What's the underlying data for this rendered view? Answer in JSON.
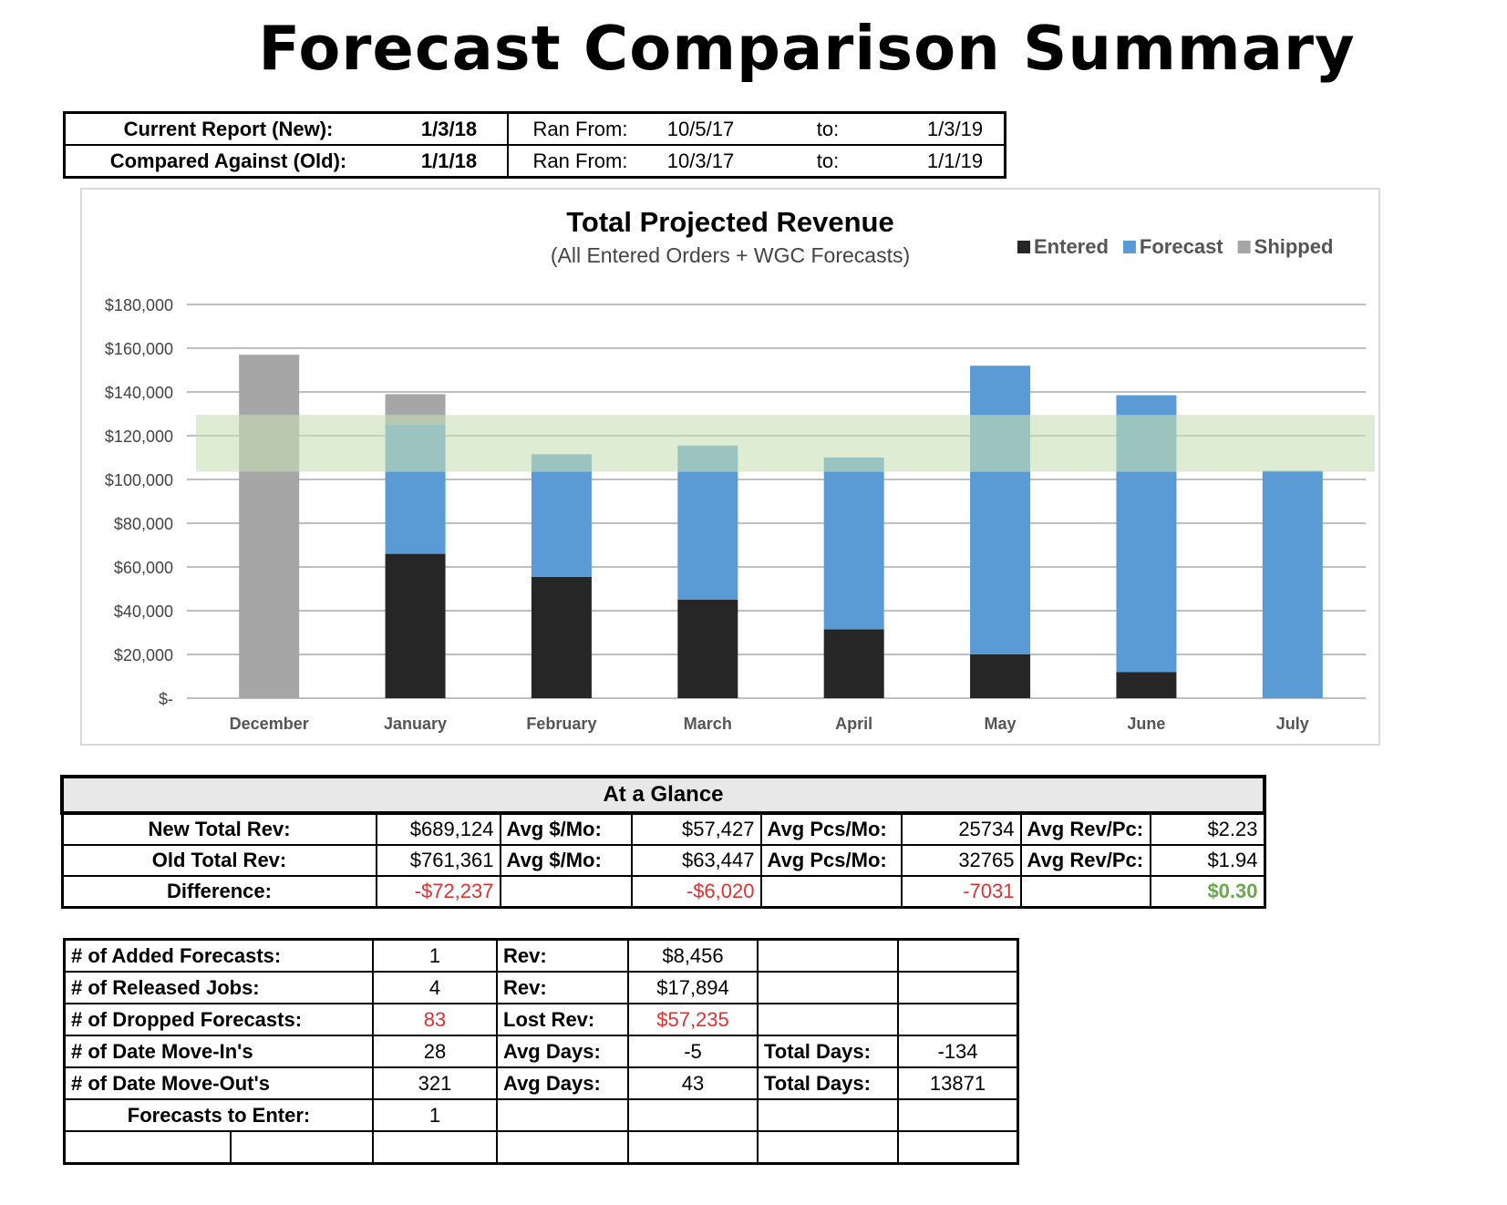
{
  "title": "Forecast Comparison Summary",
  "report": {
    "current_label": "Current Report (New):",
    "current_date": "1/3/18",
    "current_ran_label": "Ran From:",
    "current_from": "10/5/17",
    "current_to_label": "to:",
    "current_to": "1/3/19",
    "old_label": "Compared Against (Old):",
    "old_date": "1/1/18",
    "old_ran_label": "Ran From:",
    "old_from": "10/3/17",
    "old_to_label": "to:",
    "old_to": "1/1/19"
  },
  "chart_data": {
    "type": "bar",
    "stacked": true,
    "title": "Total Projected Revenue",
    "subtitle": "(All Entered Orders + WGC Forecasts)",
    "categories": [
      "December",
      "January",
      "February",
      "March",
      "April",
      "May",
      "June",
      "July"
    ],
    "series": [
      {
        "name": "Entered",
        "color": "#262626",
        "values": [
          0,
          66000,
          55500,
          45000,
          31500,
          20000,
          12000,
          0
        ]
      },
      {
        "name": "Forecast",
        "color": "#5b9bd5",
        "values": [
          0,
          59000,
          56000,
          70500,
          78500,
          132000,
          126500,
          104000
        ]
      },
      {
        "name": "Shipped",
        "color": "#a6a6a6",
        "values": [
          157000,
          14000,
          0,
          0,
          0,
          0,
          0,
          0
        ]
      }
    ],
    "band": {
      "from": 103500,
      "to": 129500,
      "color": "#c6e0b4"
    },
    "ylim": [
      0,
      180000
    ],
    "yticks": [
      0,
      20000,
      40000,
      60000,
      80000,
      100000,
      120000,
      140000,
      160000,
      180000
    ],
    "ytick_labels": [
      "$-",
      "$20,000",
      "$40,000",
      "$60,000",
      "$80,000",
      "$100,000",
      "$120,000",
      "$140,000",
      "$160,000",
      "$180,000"
    ],
    "grid": true,
    "legend": "top-right"
  },
  "glance": {
    "title": "At a Glance",
    "rows": [
      {
        "label": "New Total Rev:",
        "total": "$689,124",
        "avg_label": "Avg $/Mo:",
        "avg": "$57,427",
        "pcs_label": "Avg Pcs/Mo:",
        "pcs": "25734",
        "rpc_label": "Avg Rev/Pc:",
        "rpc": "$2.23"
      },
      {
        "label": "Old Total Rev:",
        "total": "$761,361",
        "avg_label": "Avg $/Mo:",
        "avg": "$63,447",
        "pcs_label": "Avg Pcs/Mo:",
        "pcs": "32765",
        "rpc_label": "Avg Rev/Pc:",
        "rpc": "$1.94"
      },
      {
        "label": "Difference:",
        "total": "-$72,237",
        "avg_label": "",
        "avg": "-$6,020",
        "pcs_label": "",
        "pcs": "-7031",
        "rpc_label": "",
        "rpc": "$0.30"
      }
    ]
  },
  "stats": {
    "added_label": "# of Added Forecasts:",
    "added": "1",
    "added_rev_label": "Rev:",
    "added_rev": "$8,456",
    "released_label": "# of Released Jobs:",
    "released": "4",
    "released_rev_label": "Rev:",
    "released_rev": "$17,894",
    "dropped_label": "# of Dropped Forecasts:",
    "dropped": "83",
    "dropped_rev_label": "Lost Rev:",
    "dropped_rev": "$57,235",
    "movein_label": "# of Date Move-In's",
    "movein": "28",
    "movein_avg_label": "Avg Days:",
    "movein_avg": "-5",
    "movein_total_label": "Total Days:",
    "movein_total": "-134",
    "moveout_label": "# of Date Move-Out's",
    "moveout": "321",
    "moveout_avg_label": "Avg Days:",
    "moveout_avg": "43",
    "moveout_total_label": "Total Days:",
    "moveout_total": "13871",
    "enter_label": "Forecasts to Enter:",
    "enter": "1"
  }
}
